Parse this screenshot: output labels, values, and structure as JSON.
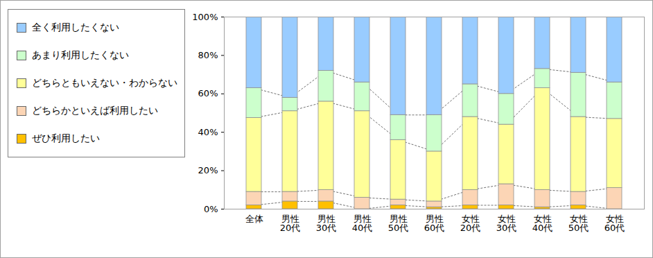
{
  "chart_data": {
    "type": "bar",
    "stacked": true,
    "grid": false,
    "legend": "left",
    "categories": [
      "全体",
      "男性\n20代",
      "男性\n30代",
      "男性\n40代",
      "男性\n50代",
      "男性\n60代",
      "女性\n20代",
      "女性\n30代",
      "女性\n40代",
      "女性\n50代",
      "女性\n60代"
    ],
    "ylim": [
      0,
      100
    ],
    "yticks": [
      {
        "value": 0,
        "label": "0%"
      },
      {
        "value": 20,
        "label": "20%"
      },
      {
        "value": 40,
        "label": "40%"
      },
      {
        "value": 60,
        "label": "60%"
      },
      {
        "value": 80,
        "label": "80%"
      },
      {
        "value": 100,
        "label": "100%"
      }
    ],
    "series": [
      {
        "name": "ぜひ利用したい",
        "color": "#ffc000",
        "values": [
          2,
          4,
          4,
          0,
          2,
          1,
          2,
          2,
          1,
          2,
          0
        ]
      },
      {
        "name": "どちらかといえば利用したい",
        "color": "#fcd5b5",
        "values": [
          7,
          5,
          6,
          6,
          3,
          3,
          8,
          11,
          9,
          7,
          11
        ]
      },
      {
        "name": "どちらともいえない・わからない",
        "color": "#ffff99",
        "values": [
          38.5,
          42,
          46,
          45,
          31,
          26,
          38,
          31,
          53,
          39,
          36
        ]
      },
      {
        "name": "あまり利用したくない",
        "color": "#ccffcc",
        "values": [
          15.5,
          7,
          16,
          15,
          13,
          19,
          17,
          16,
          10,
          23,
          19
        ]
      },
      {
        "name": "全く利用したくない",
        "color": "#99ccff",
        "values": [
          37,
          42,
          28,
          34,
          51,
          51,
          35,
          40,
          27,
          29,
          34
        ]
      }
    ]
  }
}
